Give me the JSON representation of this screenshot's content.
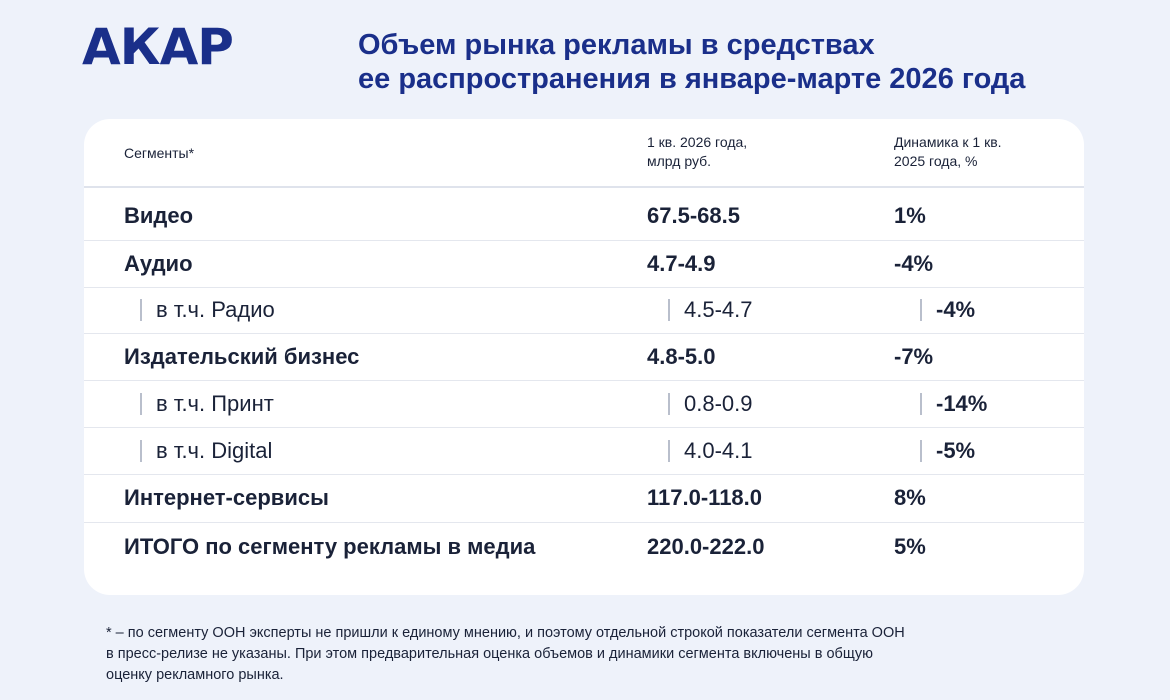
{
  "header": {
    "logo": "АКАР",
    "title_line1": "Объем рынка рекламы в средствах",
    "title_line2": "ее распространения в январе-марте 2026 года"
  },
  "table": {
    "columns": {
      "segment": "Сегменты*",
      "volume_line1": "1 кв. 2026 года,",
      "volume_line2": "млрд руб.",
      "dynamics_line1": "Динамика к 1 кв.",
      "dynamics_line2": "2025 года, %"
    },
    "rows": [
      {
        "segment": "Видео",
        "volume": "67.5-68.5",
        "dynamics": "1%"
      },
      {
        "segment": "Аудио",
        "volume": "4.7-4.9",
        "dynamics": "-4%"
      },
      {
        "segment": "в т.ч. Радио",
        "volume": "4.5-4.7",
        "dynamics": "-4%"
      },
      {
        "segment": "Издательский бизнес",
        "volume": "4.8-5.0",
        "dynamics": "-7%"
      },
      {
        "segment": "в т.ч. Принт",
        "volume": "0.8-0.9",
        "dynamics": "-14%"
      },
      {
        "segment": "в т.ч. Digital",
        "volume": "4.0-4.1",
        "dynamics": "-5%"
      },
      {
        "segment": "Интернет-сервисы",
        "volume": "117.0-118.0",
        "dynamics": "8%"
      },
      {
        "segment": "ИТОГО по сегменту рекламы в медиа",
        "volume": "220.0-222.0",
        "dynamics": "5%"
      }
    ]
  },
  "footnote": {
    "line1": "* – по сегменту OOH эксперты не пришли к единому мнению, и поэтому отдельной строкой показатели сегмента OOH",
    "line2": "в пресс-релизе не указаны. При этом предварительная оценка объемов и динамики сегмента включены в общую",
    "line3": "оценку рекламного рынка."
  },
  "colors": {
    "background": "#eef2fa",
    "brand_blue": "#1a2f8a",
    "card": "#ffffff",
    "text": "#1a2238"
  }
}
